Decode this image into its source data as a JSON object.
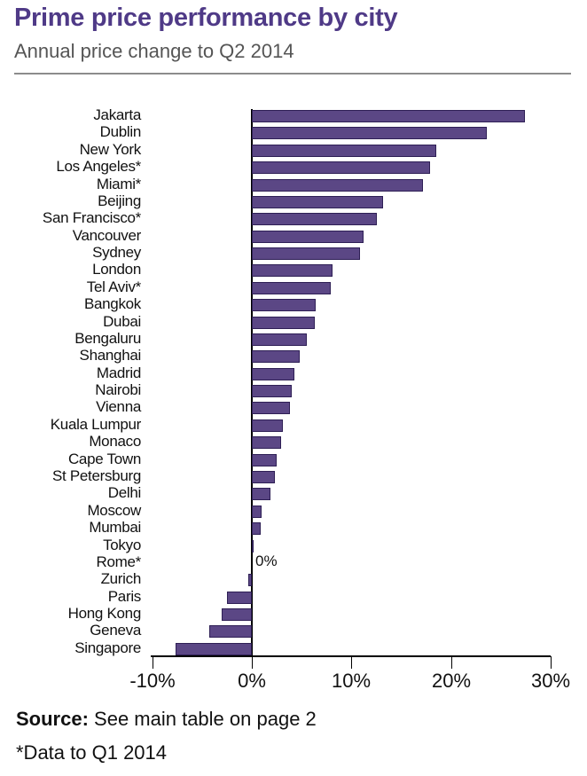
{
  "header": {
    "title": "Prime price performance by city",
    "subtitle": "Annual price change to Q2 2014"
  },
  "footer": {
    "source_label": "Source:",
    "source_text": " See main table on page 2",
    "footnote": "*Data to Q1 2014"
  },
  "annotations": {
    "zero": "0%"
  },
  "colors": {
    "bar_fill": "#5b4785",
    "bar_border": "#2e1f55",
    "title": "#4f3a87",
    "subtitle": "#555555"
  },
  "chart_data": {
    "type": "bar",
    "orientation": "horizontal",
    "title": "Prime price performance by city",
    "subtitle": "Annual price change to Q2 2014",
    "xlabel": "",
    "ylabel": "",
    "xlim": [
      -10,
      30
    ],
    "x_ticks": [
      "-10%",
      "0%",
      "10%",
      "20%",
      "30%"
    ],
    "x_tick_values": [
      -10,
      0,
      10,
      20,
      30
    ],
    "grid": false,
    "legend": null,
    "annotations": [
      "0% (Rome*)"
    ],
    "categories": [
      "Jakarta",
      "Dublin",
      "New York",
      "Los Angeles*",
      "Miami*",
      "Beijing",
      "San Francisco*",
      "Vancouver",
      "Sydney",
      "London",
      "Tel Aviv*",
      "Bangkok",
      "Dubai",
      "Bengaluru",
      "Shanghai",
      "Madrid",
      "Nairobi",
      "Vienna",
      "Kuala Lumpur",
      "Monaco",
      "Cape Town",
      "St Petersburg",
      "Delhi",
      "Moscow",
      "Mumbai",
      "Tokyo",
      "Rome*",
      "Zurich",
      "Paris",
      "Hong Kong",
      "Geneva",
      "Singapore"
    ],
    "values": [
      27.4,
      23.6,
      18.5,
      17.9,
      17.2,
      13.2,
      12.6,
      11.2,
      10.9,
      8.1,
      7.9,
      6.4,
      6.3,
      5.5,
      4.8,
      4.3,
      4.0,
      3.8,
      3.1,
      2.9,
      2.5,
      2.3,
      1.9,
      1.0,
      0.9,
      0.2,
      0.0,
      -0.4,
      -2.5,
      -3.0,
      -4.3,
      -7.7
    ],
    "units": "%",
    "notes": "*Data to Q1 2014"
  }
}
